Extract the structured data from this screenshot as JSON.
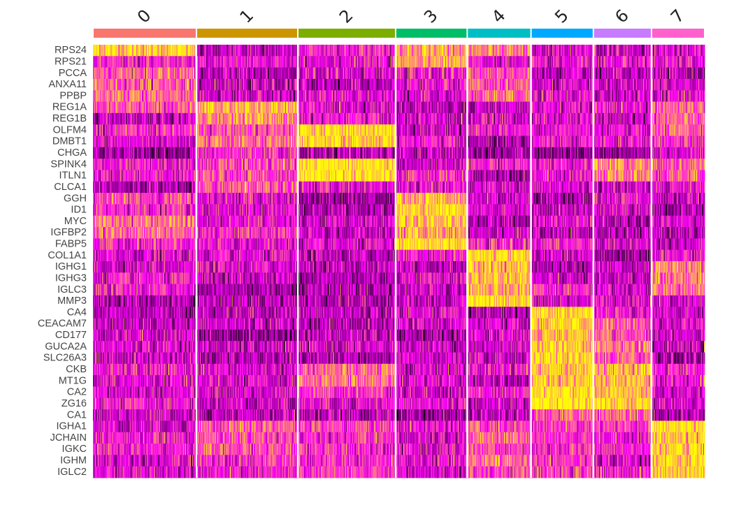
{
  "chart_data": {
    "type": "heatmap",
    "title": "",
    "xlabel": "",
    "ylabel": "",
    "color_scale": {
      "low": "#000000",
      "mid": "#ff00ff",
      "high": "#ffff00"
    },
    "clusters": [
      {
        "label": "0",
        "color": "#f8766d",
        "cells": 146
      },
      {
        "label": "1",
        "color": "#cd9600",
        "cells": 143
      },
      {
        "label": "2",
        "color": "#7cae00",
        "cells": 138
      },
      {
        "label": "3",
        "color": "#00be67",
        "cells": 101
      },
      {
        "label": "4",
        "color": "#00bfc4",
        "cells": 90
      },
      {
        "label": "5",
        "color": "#00a9ff",
        "cells": 88
      },
      {
        "label": "6",
        "color": "#c77cff",
        "cells": 82
      },
      {
        "label": "7",
        "color": "#ff61cc",
        "cells": 75
      }
    ],
    "genes": [
      "RPS24",
      "RPS21",
      "PCCA",
      "ANXA11",
      "PPBP",
      "REG1A",
      "REG1B",
      "OLFM4",
      "DMBT1",
      "CHGA",
      "SPINK4",
      "ITLN1",
      "CLCA1",
      "GGH",
      "ID1",
      "MYC",
      "IGFBP2",
      "FABP5",
      "COL1A1",
      "IGHG1",
      "IGHG3",
      "IGLC3",
      "MMP3",
      "CA4",
      "CEACAM7",
      "CD177",
      "GUCA2A",
      "SLC26A3",
      "CKB",
      "MT1G",
      "CA2",
      "ZG16",
      "CA1",
      "IGHA1",
      "JCHAIN",
      "IGKC",
      "IGHM",
      "IGLC2"
    ],
    "mean_scaled_expression": [
      [
        2.2,
        -0.4,
        -0.1,
        1.8,
        0.9,
        -0.1,
        -0.3,
        -0.2
      ],
      [
        0.0,
        -0.4,
        -0.2,
        2.4,
        -0.2,
        0.0,
        0.1,
        -0.3
      ],
      [
        1.2,
        -0.3,
        -0.6,
        0.0,
        0.8,
        -0.7,
        -0.5,
        -0.5
      ],
      [
        1.1,
        -0.4,
        -0.4,
        -0.2,
        0.9,
        -0.5,
        -0.5,
        -0.6
      ],
      [
        1.1,
        -0.3,
        -0.5,
        -0.2,
        0.7,
        -0.5,
        -0.5,
        -0.5
      ],
      [
        -0.2,
        1.6,
        -0.4,
        -0.5,
        -0.3,
        -0.4,
        0.0,
        1.0
      ],
      [
        -0.3,
        1.6,
        -0.5,
        -0.5,
        -0.3,
        -0.4,
        -0.2,
        0.9
      ],
      [
        0.0,
        1.0,
        2.2,
        0.1,
        -0.3,
        0.3,
        0.1,
        0.6
      ],
      [
        -0.4,
        0.9,
        2.1,
        -0.1,
        -0.4,
        0.1,
        0.4,
        0.5
      ],
      [
        -0.9,
        0.3,
        -0.8,
        -0.9,
        -0.8,
        -0.9,
        -0.8,
        -0.6
      ],
      [
        0.0,
        0.8,
        2.3,
        0.0,
        -0.2,
        0.2,
        1.2,
        0.8
      ],
      [
        0.1,
        0.8,
        2.2,
        0.1,
        -0.2,
        0.2,
        1.1,
        0.5
      ],
      [
        -0.4,
        0.4,
        0.2,
        -0.4,
        -0.5,
        -0.4,
        -0.3,
        0.1
      ],
      [
        0.6,
        -0.2,
        -0.6,
        2.2,
        -0.3,
        -0.5,
        -0.4,
        -0.6
      ],
      [
        0.6,
        -0.2,
        -0.6,
        2.0,
        -0.4,
        -0.4,
        -0.3,
        -0.6
      ],
      [
        0.9,
        -0.1,
        -0.5,
        2.1,
        -0.5,
        -0.5,
        -0.4,
        -0.6
      ],
      [
        0.7,
        -0.2,
        -0.5,
        1.9,
        -0.5,
        -0.5,
        -0.4,
        -0.6
      ],
      [
        0.8,
        -0.2,
        -0.4,
        2.4,
        -0.4,
        -0.4,
        -0.5,
        -0.5
      ],
      [
        -0.2,
        -0.5,
        -0.6,
        -0.3,
        2.3,
        -0.6,
        -0.5,
        -0.5
      ],
      [
        -0.2,
        -0.3,
        -0.5,
        -0.3,
        1.9,
        -0.5,
        -0.3,
        1.5
      ],
      [
        -0.3,
        -0.4,
        -0.5,
        -0.3,
        1.8,
        -0.4,
        -0.3,
        1.3
      ],
      [
        -0.1,
        -0.2,
        -0.3,
        -0.2,
        1.7,
        0.0,
        -0.1,
        0.4
      ],
      [
        -0.4,
        -0.5,
        -0.5,
        -0.5,
        1.9,
        -0.6,
        -0.5,
        -0.3
      ],
      [
        -0.5,
        -0.6,
        -0.6,
        -0.6,
        -0.4,
        2.4,
        0.0,
        -0.5
      ],
      [
        -0.4,
        -0.6,
        -0.6,
        -0.5,
        -0.3,
        2.3,
        1.1,
        -0.4
      ],
      [
        -0.6,
        -0.6,
        -0.6,
        -0.6,
        -0.6,
        1.9,
        0.6,
        -0.5
      ],
      [
        -0.4,
        -0.5,
        -0.6,
        -0.5,
        -0.4,
        2.2,
        1.2,
        -0.4
      ],
      [
        -0.5,
        -0.6,
        -0.6,
        -0.6,
        -0.5,
        2.1,
        0.9,
        -0.5
      ],
      [
        0.3,
        -0.4,
        0.6,
        -0.3,
        0.2,
        2.0,
        2.0,
        -0.2
      ],
      [
        -0.3,
        -0.2,
        0.9,
        -0.4,
        -0.2,
        2.2,
        1.8,
        -0.1
      ],
      [
        -0.2,
        -0.3,
        0.5,
        -0.3,
        -0.2,
        2.2,
        1.9,
        -0.2
      ],
      [
        0.2,
        -0.2,
        0.3,
        0.1,
        -0.1,
        2.3,
        2.4,
        -0.2
      ],
      [
        -0.9,
        -0.5,
        -0.7,
        -0.8,
        -0.8,
        0.8,
        0.7,
        -0.7
      ],
      [
        0.1,
        0.7,
        0.4,
        0.0,
        0.8,
        0.4,
        0.3,
        2.4
      ],
      [
        0.0,
        0.6,
        0.3,
        -0.1,
        0.7,
        0.3,
        0.2,
        2.3
      ],
      [
        0.1,
        0.6,
        0.4,
        0.0,
        0.8,
        0.4,
        0.3,
        2.2
      ],
      [
        -0.2,
        0.4,
        0.2,
        -0.2,
        0.6,
        0.2,
        0.1,
        2.1
      ],
      [
        -0.1,
        0.4,
        0.3,
        -0.1,
        0.6,
        0.3,
        0.2,
        1.9
      ]
    ]
  }
}
